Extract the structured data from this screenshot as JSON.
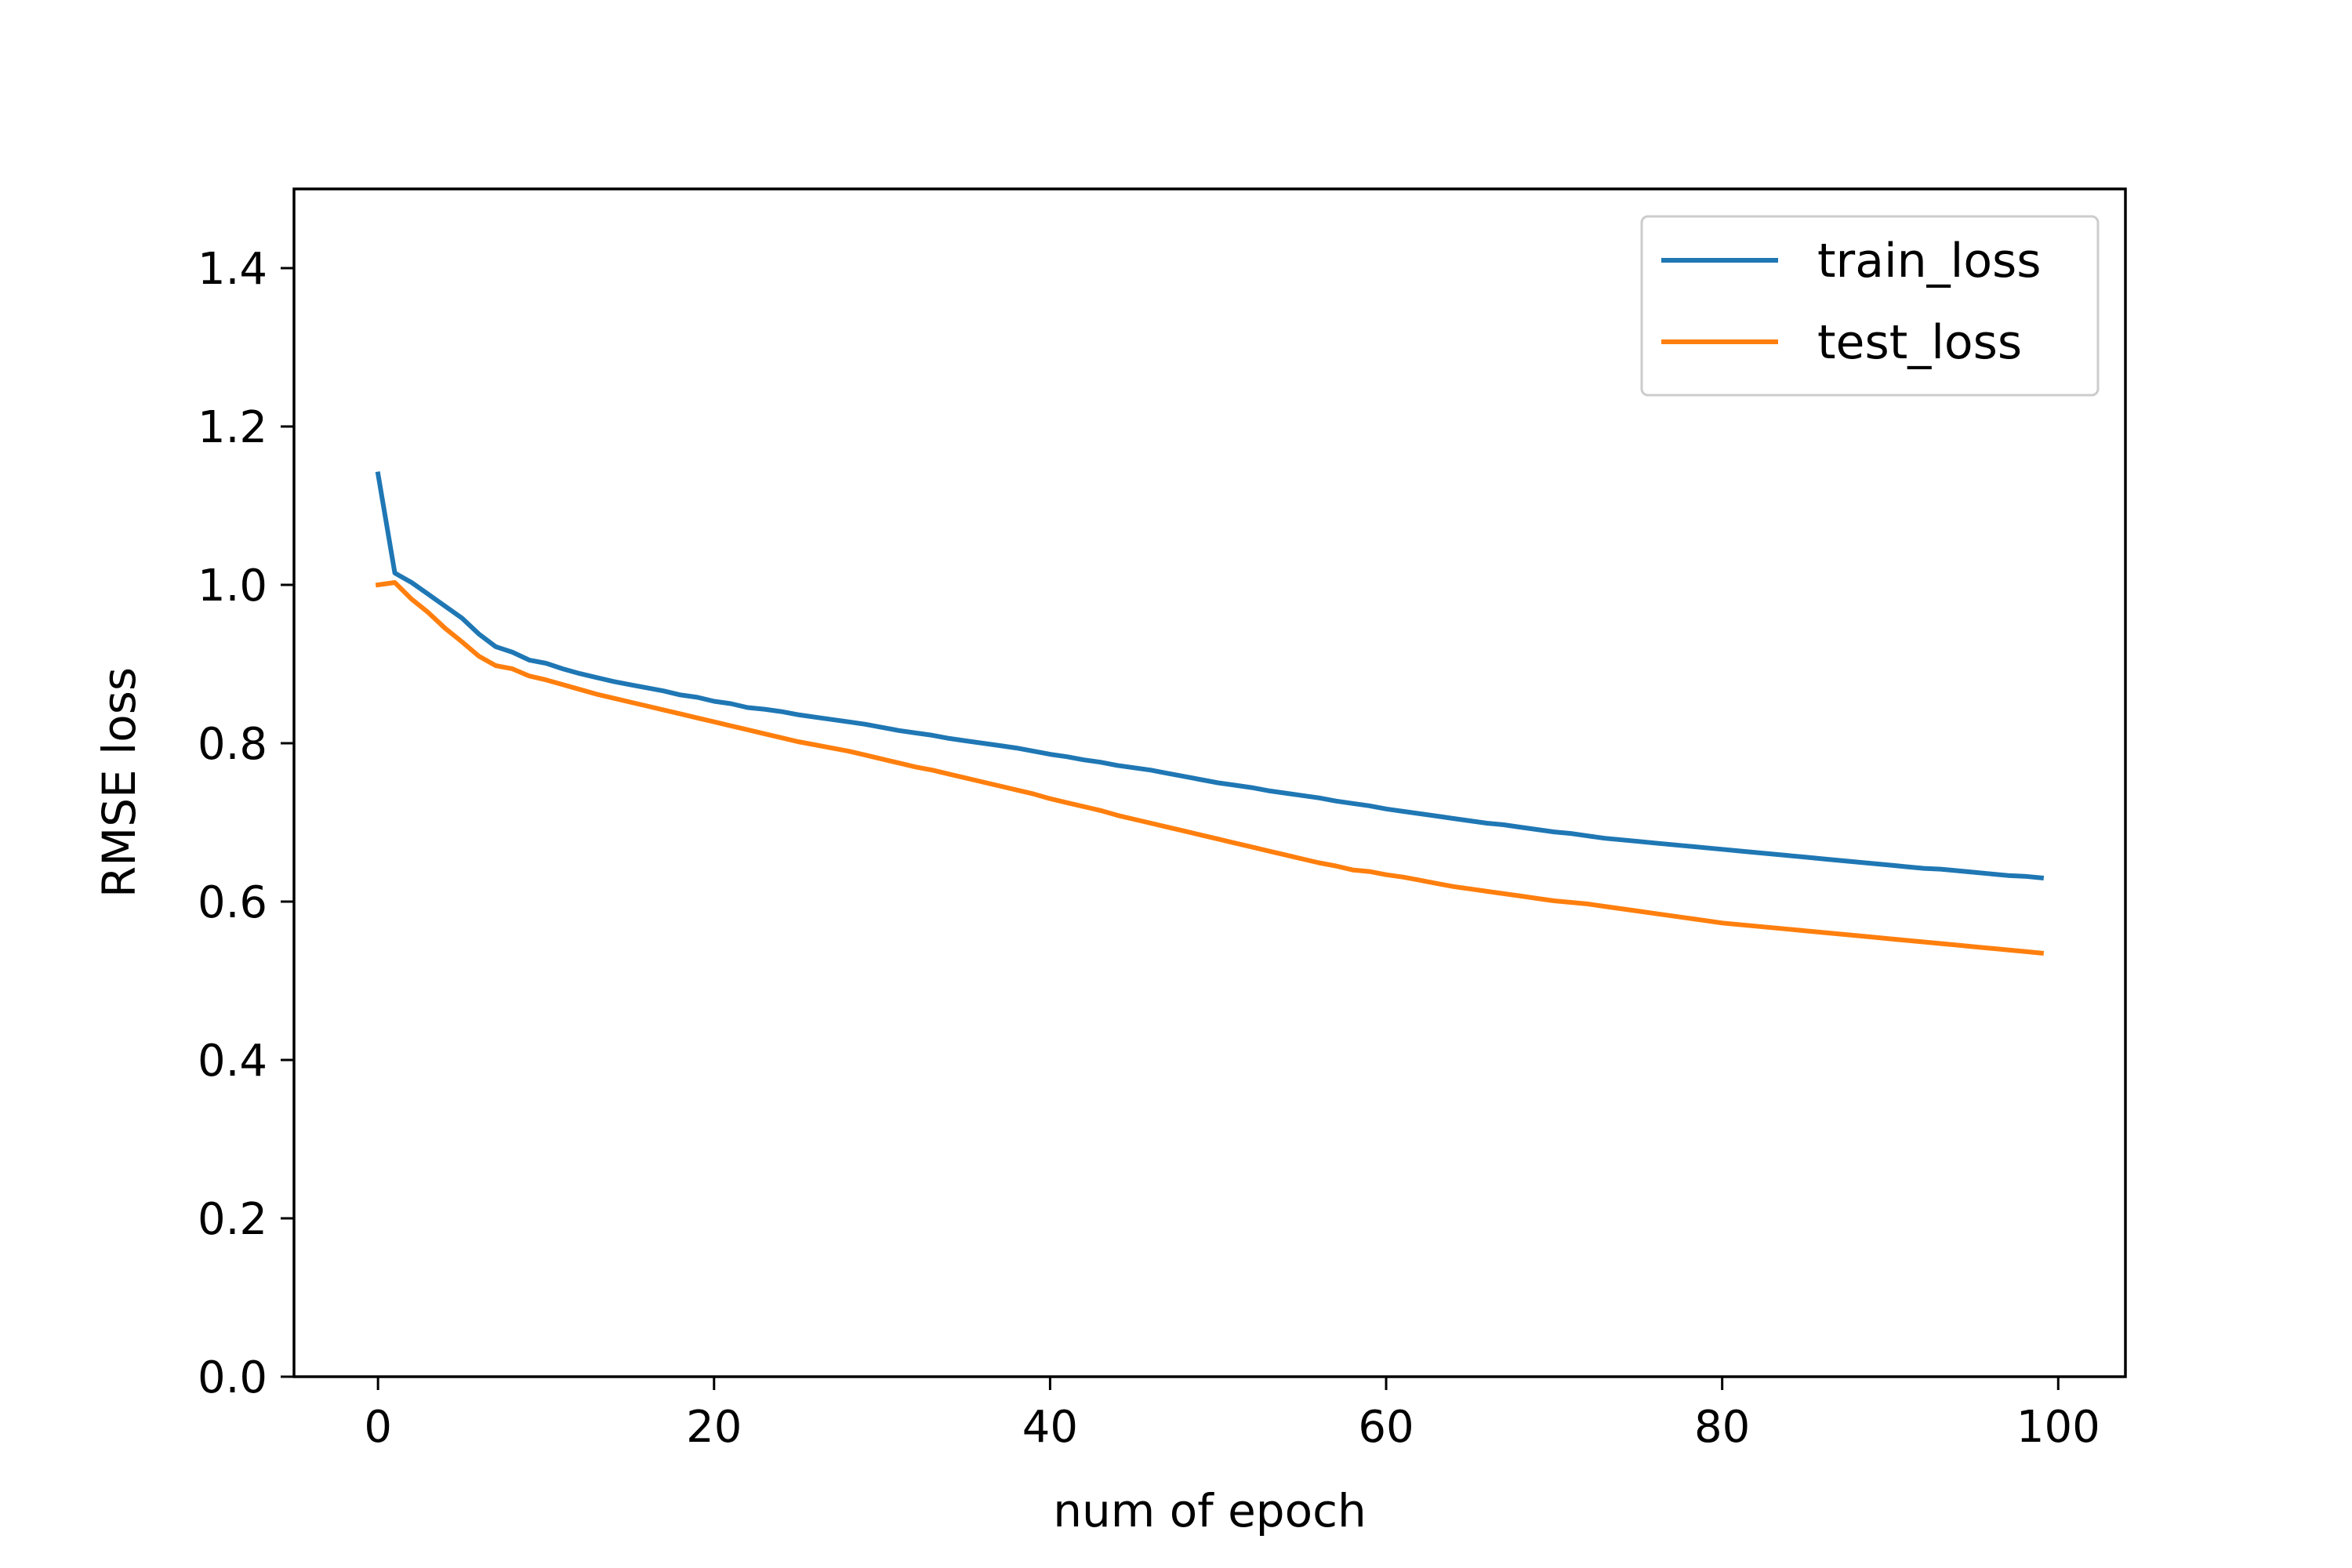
{
  "chart_data": {
    "type": "line",
    "title": "",
    "xlabel": "num of epoch",
    "ylabel": "RMSE loss",
    "xlim": [
      -5,
      104
    ],
    "ylim": [
      0,
      1.5
    ],
    "xticks": [
      0,
      20,
      40,
      60,
      80,
      100
    ],
    "xtick_labels": [
      "0",
      "20",
      "40",
      "60",
      "80",
      "100"
    ],
    "yticks": [
      0.0,
      0.2,
      0.4,
      0.6,
      0.8,
      1.0,
      1.2,
      1.4
    ],
    "ytick_labels": [
      "0.0",
      "0.2",
      "0.4",
      "0.6",
      "0.8",
      "1.0",
      "1.2",
      "1.4"
    ],
    "grid": false,
    "legend_position": "top-right",
    "x": [
      0,
      1,
      2,
      3,
      4,
      5,
      6,
      7,
      8,
      9,
      10,
      11,
      12,
      13,
      14,
      15,
      16,
      17,
      18,
      19,
      20,
      21,
      22,
      23,
      24,
      25,
      26,
      27,
      28,
      29,
      30,
      31,
      32,
      33,
      34,
      35,
      36,
      37,
      38,
      39,
      40,
      41,
      42,
      43,
      44,
      45,
      46,
      47,
      48,
      49,
      50,
      51,
      52,
      53,
      54,
      55,
      56,
      57,
      58,
      59,
      60,
      61,
      62,
      63,
      64,
      65,
      66,
      67,
      68,
      69,
      70,
      71,
      72,
      73,
      74,
      75,
      76,
      77,
      78,
      79,
      80,
      81,
      82,
      83,
      84,
      85,
      86,
      87,
      88,
      89,
      90,
      91,
      92,
      93,
      94,
      95,
      96,
      97,
      98,
      99
    ],
    "series": [
      {
        "name": "train_loss",
        "color": "#1f77b4",
        "values": [
          1.14,
          1.015,
          1.003,
          0.988,
          0.973,
          0.958,
          0.938,
          0.922,
          0.915,
          0.905,
          0.901,
          0.894,
          0.888,
          0.883,
          0.878,
          0.874,
          0.87,
          0.866,
          0.861,
          0.858,
          0.853,
          0.85,
          0.845,
          0.843,
          0.84,
          0.836,
          0.833,
          0.83,
          0.827,
          0.824,
          0.82,
          0.816,
          0.813,
          0.81,
          0.806,
          0.803,
          0.8,
          0.797,
          0.794,
          0.79,
          0.786,
          0.783,
          0.779,
          0.776,
          0.772,
          0.769,
          0.766,
          0.762,
          0.758,
          0.754,
          0.75,
          0.747,
          0.744,
          0.74,
          0.737,
          0.734,
          0.731,
          0.727,
          0.724,
          0.721,
          0.717,
          0.714,
          0.711,
          0.708,
          0.705,
          0.702,
          0.699,
          0.697,
          0.694,
          0.691,
          0.688,
          0.686,
          0.683,
          0.68,
          0.678,
          0.676,
          0.674,
          0.672,
          0.67,
          0.668,
          0.666,
          0.664,
          0.662,
          0.66,
          0.658,
          0.656,
          0.654,
          0.652,
          0.65,
          0.648,
          0.646,
          0.644,
          0.642,
          0.641,
          0.639,
          0.637,
          0.635,
          0.633,
          0.632,
          0.63
        ]
      },
      {
        "name": "test_loss",
        "color": "#ff7f0e",
        "values": [
          1.0,
          1.003,
          0.982,
          0.965,
          0.945,
          0.928,
          0.91,
          0.898,
          0.894,
          0.885,
          0.88,
          0.874,
          0.868,
          0.862,
          0.857,
          0.852,
          0.847,
          0.842,
          0.837,
          0.832,
          0.827,
          0.822,
          0.817,
          0.812,
          0.807,
          0.802,
          0.798,
          0.794,
          0.79,
          0.785,
          0.78,
          0.775,
          0.77,
          0.766,
          0.761,
          0.756,
          0.751,
          0.746,
          0.741,
          0.736,
          0.73,
          0.725,
          0.72,
          0.715,
          0.709,
          0.704,
          0.699,
          0.694,
          0.689,
          0.684,
          0.679,
          0.674,
          0.669,
          0.664,
          0.659,
          0.654,
          0.649,
          0.645,
          0.64,
          0.638,
          0.634,
          0.631,
          0.627,
          0.623,
          0.619,
          0.616,
          0.613,
          0.61,
          0.607,
          0.604,
          0.601,
          0.599,
          0.597,
          0.594,
          0.591,
          0.588,
          0.585,
          0.582,
          0.579,
          0.576,
          0.573,
          0.571,
          0.569,
          0.567,
          0.565,
          0.563,
          0.561,
          0.559,
          0.557,
          0.555,
          0.553,
          0.551,
          0.549,
          0.547,
          0.545,
          0.543,
          0.541,
          0.539,
          0.537,
          0.535
        ]
      }
    ]
  }
}
